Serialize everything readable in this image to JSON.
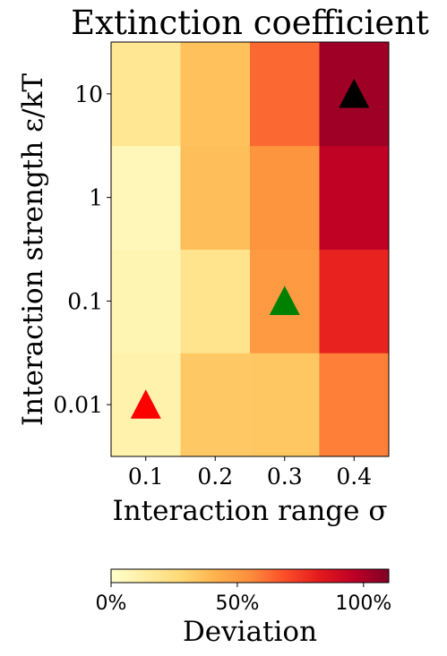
{
  "chart_data": {
    "type": "heatmap",
    "title": "Extinction coefficient",
    "xlabel": "Interaction range σ",
    "ylabel": "Interaction strength ε/kT",
    "x_categories": [
      "0.1",
      "0.2",
      "0.3",
      "0.4"
    ],
    "y_categories": [
      "0.01",
      "0.1",
      "1",
      "10"
    ],
    "values": [
      [
        0.1,
        0.33,
        0.34,
        0.58
      ],
      [
        0.08,
        0.2,
        0.5,
        0.8
      ],
      [
        0.06,
        0.37,
        0.52,
        0.95
      ],
      [
        0.18,
        0.36,
        0.63,
        1.03
      ]
    ],
    "markers": [
      {
        "x": "0.1",
        "y": "0.01",
        "shape": "triangle",
        "color": "#ff0000"
      },
      {
        "x": "0.3",
        "y": "0.1",
        "shape": "triangle",
        "color": "#008000"
      },
      {
        "x": "0.4",
        "y": "10",
        "shape": "triangle",
        "color": "#000000"
      }
    ],
    "colormap": "YlOrRd",
    "colorbar": {
      "label": "Deviation",
      "range": [
        0,
        1.1
      ],
      "ticks": [
        0,
        0.5,
        1.0
      ],
      "tick_labels": [
        "0%",
        "50%",
        "100%"
      ],
      "orientation": "horizontal"
    }
  }
}
